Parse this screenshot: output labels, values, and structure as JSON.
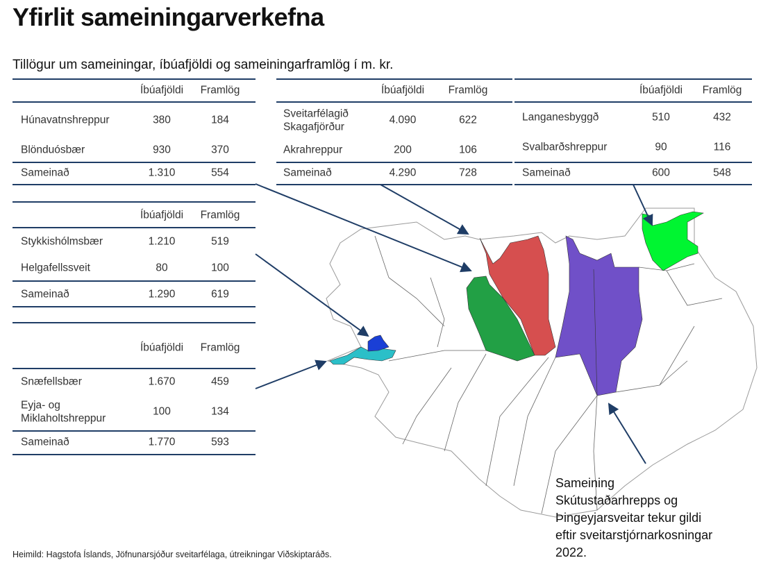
{
  "title": "Yfirlit sameiningarverkefna",
  "subtitle": "Tillögur um sameiningar, íbúafjöldi og sameiningarframlög í m. kr.",
  "columns": {
    "pop": "Íbúafjöldi",
    "fund": "Framlög"
  },
  "tables": [
    {
      "rows": [
        {
          "name": "Húnavatnshreppur",
          "pop": "380",
          "fund": "184"
        },
        {
          "name": "Blönduósbær",
          "pop": "930",
          "fund": "370"
        }
      ],
      "total": {
        "name": "Sameinað",
        "pop": "1.310",
        "fund": "554"
      }
    },
    {
      "rows": [
        {
          "name": "Sveitarfélagið\nSkagafjörður",
          "pop": "4.090",
          "fund": "622"
        },
        {
          "name": "Akrahreppur",
          "pop": "200",
          "fund": "106"
        }
      ],
      "total": {
        "name": "Sameinað",
        "pop": "4.290",
        "fund": "728"
      }
    },
    {
      "rows": [
        {
          "name": "Langanesbyggð",
          "pop": "510",
          "fund": "432"
        },
        {
          "name": "Svalbarðshreppur",
          "pop": "90",
          "fund": "116"
        }
      ],
      "total": {
        "name": "Sameinað",
        "pop": "600",
        "fund": "548"
      }
    },
    {
      "rows": [
        {
          "name": "Stykkishólmsbær",
          "pop": "1.210",
          "fund": "519"
        },
        {
          "name": "Helgafellssveit",
          "pop": "80",
          "fund": "100"
        }
      ],
      "total": {
        "name": "Sameinað",
        "pop": "1.290",
        "fund": "619"
      }
    },
    {
      "rows": [
        {
          "name": "Snæfellsbær",
          "pop": "1.670",
          "fund": "459"
        },
        {
          "name": "Eyja- og\nMiklaholtshreppur",
          "pop": "100",
          "fund": "134"
        }
      ],
      "total": {
        "name": "Sameinað",
        "pop": "1.770",
        "fund": "593"
      }
    }
  ],
  "note": "Sameining Skútustaðarhrepps og Þingeyjarsveitar tekur gildi eftir sveitarstjórnarkosningar 2022.",
  "source": "Heimild: Hagstofa Íslands, Jöfnunarsjóður sveitarfélaga, útreikningar Viðskiptaráðs.",
  "colors": {
    "line": "#1f3d66",
    "red": "#d64f4f",
    "green": "#22a045",
    "purple": "#7050c8",
    "lime": "#00f531",
    "cyan": "#2bbfc8",
    "blue": "#1a3fd6"
  }
}
